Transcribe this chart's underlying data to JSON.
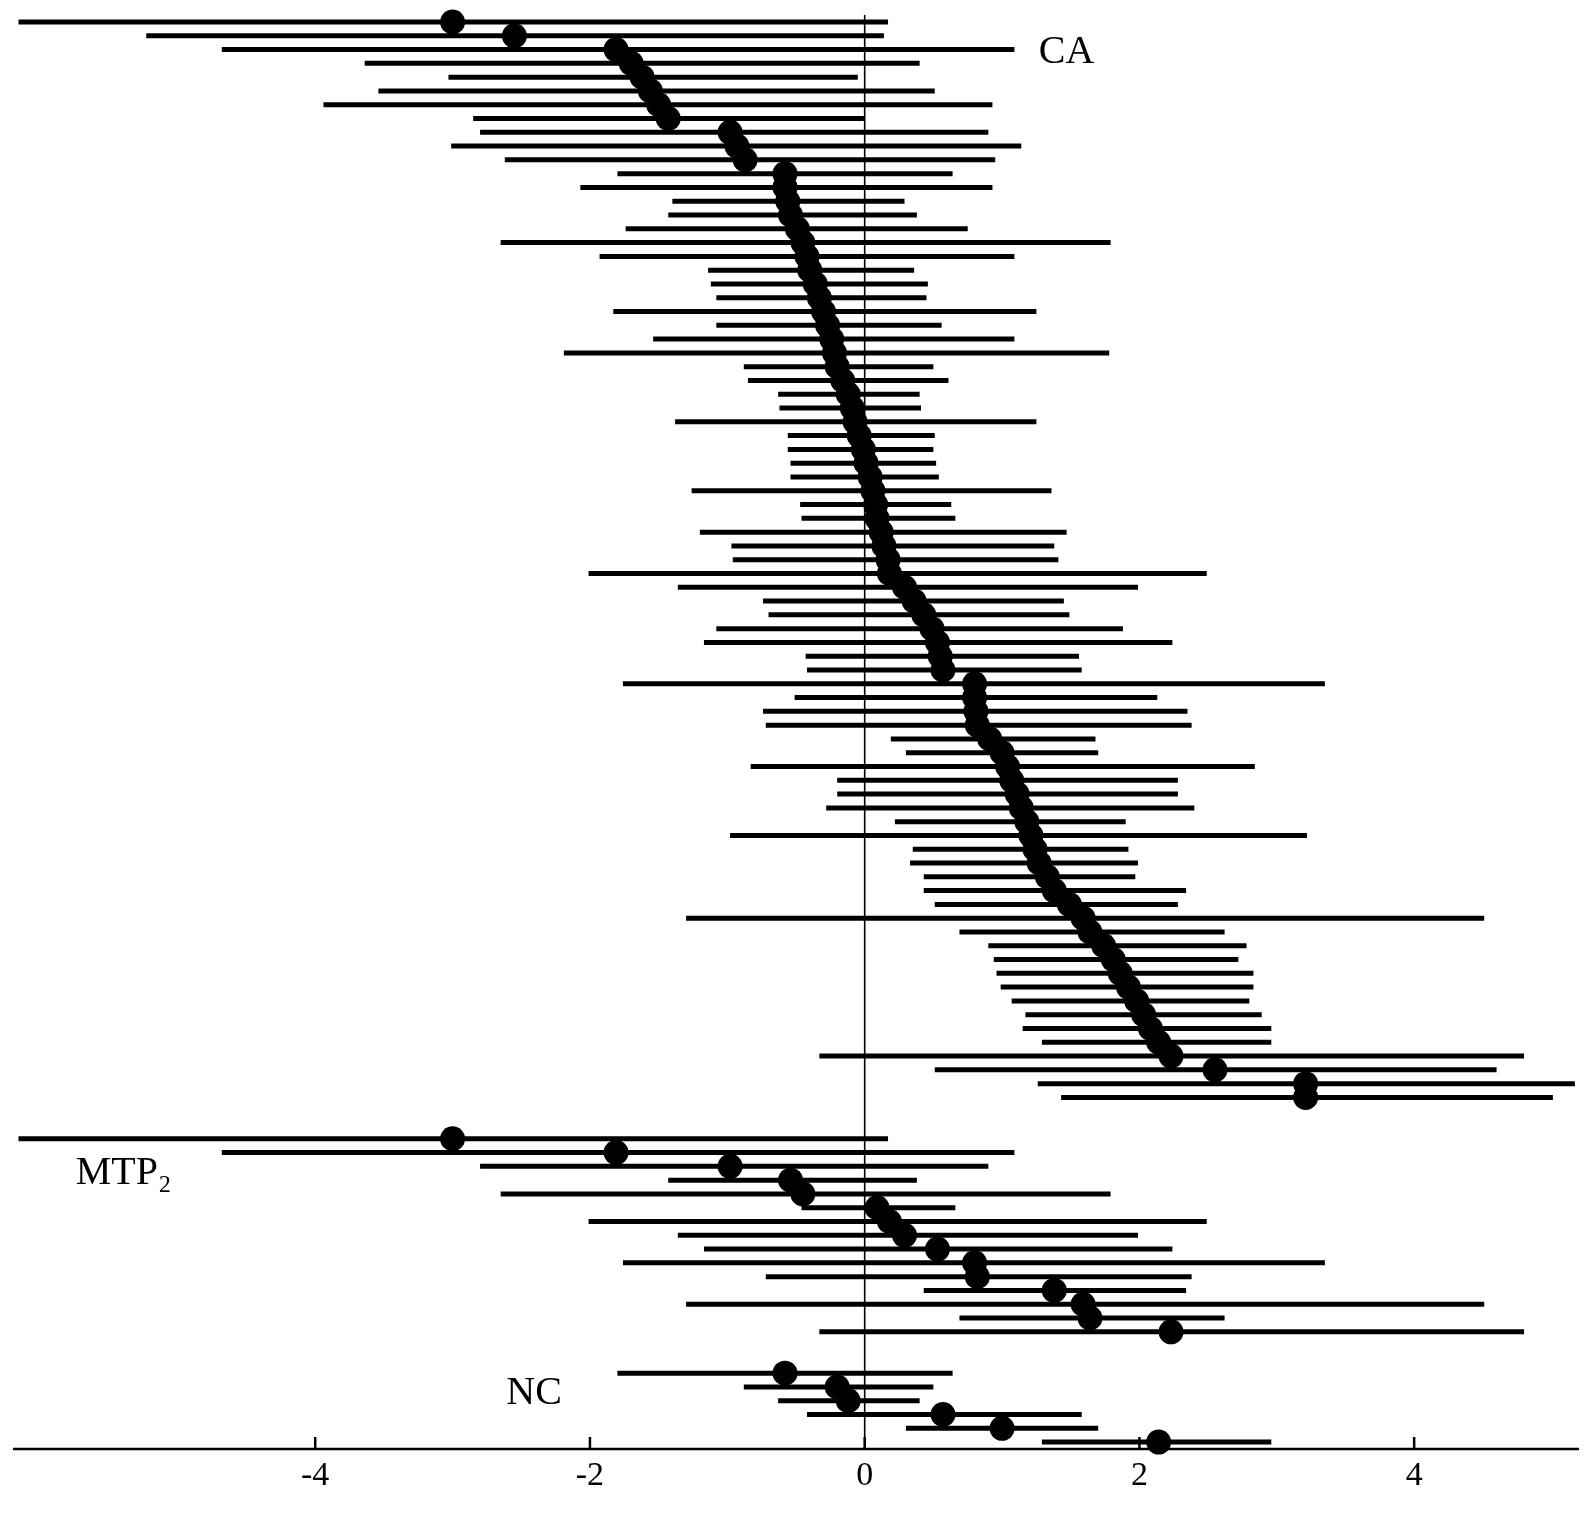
{
  "chart_data": {
    "type": "scatter",
    "orientation": "horizontal",
    "marker": "circle",
    "categories": [
      null,
      null,
      null,
      null,
      null,
      null,
      null,
      null,
      null,
      null,
      null,
      null,
      null,
      null,
      null,
      null,
      null,
      null,
      null,
      null,
      null,
      null,
      null,
      null,
      null,
      null,
      null,
      null,
      null,
      null,
      null,
      null,
      null,
      null,
      null,
      null,
      null,
      null,
      null,
      null,
      null,
      null,
      null,
      null,
      null,
      null,
      null,
      null,
      null,
      null,
      null,
      null,
      null,
      null,
      null,
      null,
      null,
      null,
      null,
      null,
      null,
      null,
      null,
      null,
      null,
      null,
      null,
      null,
      null,
      null,
      null,
      null,
      null,
      null,
      null,
      null,
      null,
      null,
      null,
      null,
      null,
      null,
      null,
      null,
      null,
      null,
      null,
      null,
      null,
      null,
      null,
      null,
      null,
      null,
      null,
      null,
      null,
      null,
      null,
      null,
      null,
      null,
      null,
      null
    ],
    "annotations": [
      "CA",
      "MTP₂",
      "NC"
    ],
    "xlim": [
      -6.2,
      5.2
    ],
    "xticks": [
      -4,
      -2,
      0,
      2,
      4
    ],
    "ref_lines": [
      {
        "axis": "x",
        "value": 0,
        "color": "#000000"
      }
    ],
    "series": [
      {
        "color": "#000000",
        "values": [
          -3.0,
          -2.55,
          -1.81,
          -1.7,
          -1.62,
          -1.56,
          -1.5,
          -1.43,
          -0.98,
          -0.93,
          -0.87,
          -0.58,
          -0.58,
          -0.56,
          -0.54,
          -0.49,
          -0.45,
          -0.42,
          -0.4,
          -0.36,
          -0.33,
          -0.3,
          -0.27,
          -0.24,
          -0.22,
          -0.2,
          -0.16,
          -0.12,
          -0.09,
          -0.07,
          -0.04,
          -0.01,
          0.01,
          0.04,
          0.06,
          0.08,
          0.09,
          0.12,
          0.14,
          0.17,
          0.18,
          0.29,
          0.36,
          0.43,
          0.49,
          0.53,
          0.55,
          0.57,
          0.8,
          0.8,
          0.81,
          0.82,
          0.91,
          1.0,
          1.04,
          1.07,
          1.11,
          1.14,
          1.18,
          1.21,
          1.24,
          1.27,
          1.33,
          1.38,
          1.49,
          1.59,
          1.64,
          1.74,
          1.81,
          1.86,
          1.92,
          1.98,
          2.03,
          2.08,
          2.14,
          2.23,
          2.55,
          3.21,
          3.21,
          null,
          null,
          null,
          null,
          null,
          null,
          null,
          null,
          null,
          null,
          null,
          null,
          null,
          null,
          null,
          null,
          null,
          null,
          null,
          null,
          null,
          null,
          null,
          null,
          null
        ],
        "errors": [
          [
            -6.16,
            0.17
          ],
          [
            -5.23,
            0.14
          ],
          [
            -4.68,
            1.09
          ],
          [
            -3.64,
            0.4
          ],
          [
            -3.03,
            -0.05
          ],
          [
            -3.54,
            0.51
          ],
          [
            -3.94,
            0.93
          ],
          [
            -2.85,
            0.0
          ],
          [
            -2.8,
            0.9
          ],
          [
            -3.01,
            1.14
          ],
          [
            -2.62,
            0.95
          ],
          [
            -1.8,
            0.64
          ],
          [
            -2.07,
            0.93
          ],
          [
            -1.4,
            0.29
          ],
          [
            -1.43,
            0.38
          ],
          [
            -1.74,
            0.75
          ],
          [
            -2.65,
            1.79
          ],
          [
            -1.93,
            1.09
          ],
          [
            -1.14,
            0.36
          ],
          [
            -1.12,
            0.46
          ],
          [
            -1.08,
            0.45
          ],
          [
            -1.83,
            1.25
          ],
          [
            -1.08,
            0.56
          ],
          [
            -1.54,
            1.09
          ],
          [
            -2.19,
            1.78
          ],
          [
            -0.88,
            0.5
          ],
          [
            -0.85,
            0.61
          ],
          [
            -0.63,
            0.4
          ],
          [
            -0.62,
            0.41
          ],
          [
            -1.38,
            1.25
          ],
          [
            -0.56,
            0.51
          ],
          [
            -0.56,
            0.5
          ],
          [
            -0.54,
            0.52
          ],
          [
            -0.54,
            0.54
          ],
          [
            -1.26,
            1.36
          ],
          [
            -0.47,
            0.63
          ],
          [
            -0.46,
            0.66
          ],
          [
            -1.2,
            1.47
          ],
          [
            -0.97,
            1.38
          ],
          [
            -0.96,
            1.41
          ],
          [
            -2.01,
            2.49
          ],
          [
            -1.36,
            1.99
          ],
          [
            -0.74,
            1.45
          ],
          [
            -0.7,
            1.49
          ],
          [
            -1.08,
            1.88
          ],
          [
            -1.17,
            2.24
          ],
          [
            -0.43,
            1.56
          ],
          [
            -0.42,
            1.58
          ],
          [
            -1.76,
            3.35
          ],
          [
            -0.51,
            2.13
          ],
          [
            -0.74,
            2.35
          ],
          [
            -0.72,
            2.38
          ],
          [
            0.19,
            1.68
          ],
          [
            0.3,
            1.7
          ],
          [
            -0.83,
            2.84
          ],
          [
            -0.2,
            2.28
          ],
          [
            -0.2,
            2.28
          ],
          [
            -0.28,
            2.4
          ],
          [
            0.22,
            1.9
          ],
          [
            -0.98,
            3.22
          ],
          [
            0.35,
            1.92
          ],
          [
            0.33,
            1.99
          ],
          [
            0.43,
            1.97
          ],
          [
            0.43,
            2.34
          ],
          [
            0.51,
            2.28
          ],
          [
            -1.3,
            4.51
          ],
          [
            0.69,
            2.62
          ],
          [
            0.9,
            2.78
          ],
          [
            0.94,
            2.72
          ],
          [
            0.96,
            2.83
          ],
          [
            0.99,
            2.83
          ],
          [
            1.07,
            2.8
          ],
          [
            1.17,
            2.89
          ],
          [
            1.15,
            2.96
          ],
          [
            1.29,
            2.96
          ],
          [
            -0.33,
            4.8
          ],
          [
            0.51,
            4.6
          ],
          [
            1.26,
            5.17
          ],
          [
            1.43,
            5.01
          ],
          null,
          null,
          null,
          null,
          null,
          null,
          null,
          null,
          null,
          null,
          null,
          null,
          null,
          null,
          null,
          null,
          null,
          null,
          null,
          null,
          null,
          null,
          null,
          null,
          null
        ]
      },
      {
        "color": "#000000",
        "values": [
          null,
          null,
          null,
          null,
          null,
          null,
          null,
          null,
          null,
          null,
          null,
          null,
          null,
          null,
          null,
          null,
          null,
          null,
          null,
          null,
          null,
          null,
          null,
          null,
          null,
          null,
          null,
          null,
          null,
          null,
          null,
          null,
          null,
          null,
          null,
          null,
          null,
          null,
          null,
          null,
          null,
          null,
          null,
          null,
          null,
          null,
          null,
          null,
          null,
          null,
          null,
          null,
          null,
          null,
          null,
          null,
          null,
          null,
          null,
          null,
          null,
          null,
          null,
          null,
          null,
          null,
          null,
          null,
          null,
          null,
          null,
          null,
          null,
          null,
          null,
          null,
          null,
          null,
          null,
          null,
          null,
          -3.0,
          -1.81,
          -0.98,
          -0.54,
          -0.45,
          0.09,
          0.18,
          0.29,
          0.53,
          0.8,
          0.82,
          1.38,
          1.59,
          1.64,
          2.23,
          null,
          null,
          null,
          null,
          null,
          null,
          null,
          null
        ],
        "errors": [
          null,
          null,
          null,
          null,
          null,
          null,
          null,
          null,
          null,
          null,
          null,
          null,
          null,
          null,
          null,
          null,
          null,
          null,
          null,
          null,
          null,
          null,
          null,
          null,
          null,
          null,
          null,
          null,
          null,
          null,
          null,
          null,
          null,
          null,
          null,
          null,
          null,
          null,
          null,
          null,
          null,
          null,
          null,
          null,
          null,
          null,
          null,
          null,
          null,
          null,
          null,
          null,
          null,
          null,
          null,
          null,
          null,
          null,
          null,
          null,
          null,
          null,
          null,
          null,
          null,
          null,
          null,
          null,
          null,
          null,
          null,
          null,
          null,
          null,
          null,
          null,
          null,
          null,
          null,
          null,
          null,
          [
            -6.16,
            0.17
          ],
          [
            -4.68,
            1.09
          ],
          [
            -2.8,
            0.9
          ],
          [
            -1.43,
            0.38
          ],
          [
            -2.65,
            1.79
          ],
          [
            -0.46,
            0.66
          ],
          [
            -2.01,
            2.49
          ],
          [
            -1.36,
            1.99
          ],
          [
            -1.17,
            2.24
          ],
          [
            -1.76,
            3.35
          ],
          [
            -0.72,
            2.38
          ],
          [
            0.43,
            2.34
          ],
          [
            -1.3,
            4.51
          ],
          [
            0.69,
            2.62
          ],
          [
            -0.33,
            4.8
          ],
          null,
          null,
          null,
          null,
          null,
          null,
          null,
          null
        ]
      },
      {
        "color": "#000000",
        "values": [
          null,
          null,
          null,
          null,
          null,
          null,
          null,
          null,
          null,
          null,
          null,
          null,
          null,
          null,
          null,
          null,
          null,
          null,
          null,
          null,
          null,
          null,
          null,
          null,
          null,
          null,
          null,
          null,
          null,
          null,
          null,
          null,
          null,
          null,
          null,
          null,
          null,
          null,
          null,
          null,
          null,
          null,
          null,
          null,
          null,
          null,
          null,
          null,
          null,
          null,
          null,
          null,
          null,
          null,
          null,
          null,
          null,
          null,
          null,
          null,
          null,
          null,
          null,
          null,
          null,
          null,
          null,
          null,
          null,
          null,
          null,
          null,
          null,
          null,
          null,
          null,
          null,
          null,
          null,
          null,
          null,
          null,
          null,
          null,
          null,
          null,
          null,
          null,
          null,
          null,
          null,
          null,
          null,
          null,
          null,
          null,
          null,
          null,
          -0.58,
          -0.2,
          -0.12,
          0.57,
          1.0,
          2.14
        ],
        "errors": [
          null,
          null,
          null,
          null,
          null,
          null,
          null,
          null,
          null,
          null,
          null,
          null,
          null,
          null,
          null,
          null,
          null,
          null,
          null,
          null,
          null,
          null,
          null,
          null,
          null,
          null,
          null,
          null,
          null,
          null,
          null,
          null,
          null,
          null,
          null,
          null,
          null,
          null,
          null,
          null,
          null,
          null,
          null,
          null,
          null,
          null,
          null,
          null,
          null,
          null,
          null,
          null,
          null,
          null,
          null,
          null,
          null,
          null,
          null,
          null,
          null,
          null,
          null,
          null,
          null,
          null,
          null,
          null,
          null,
          null,
          null,
          null,
          null,
          null,
          null,
          null,
          null,
          null,
          null,
          null,
          null,
          null,
          null,
          null,
          null,
          null,
          null,
          null,
          null,
          null,
          null,
          null,
          null,
          null,
          null,
          null,
          null,
          null,
          [
            -1.8,
            0.64
          ],
          [
            -0.88,
            0.5
          ],
          [
            -0.63,
            0.4
          ],
          [
            -0.42,
            1.58
          ],
          [
            0.3,
            1.7
          ],
          [
            1.29,
            2.96
          ]
        ]
      }
    ]
  }
}
